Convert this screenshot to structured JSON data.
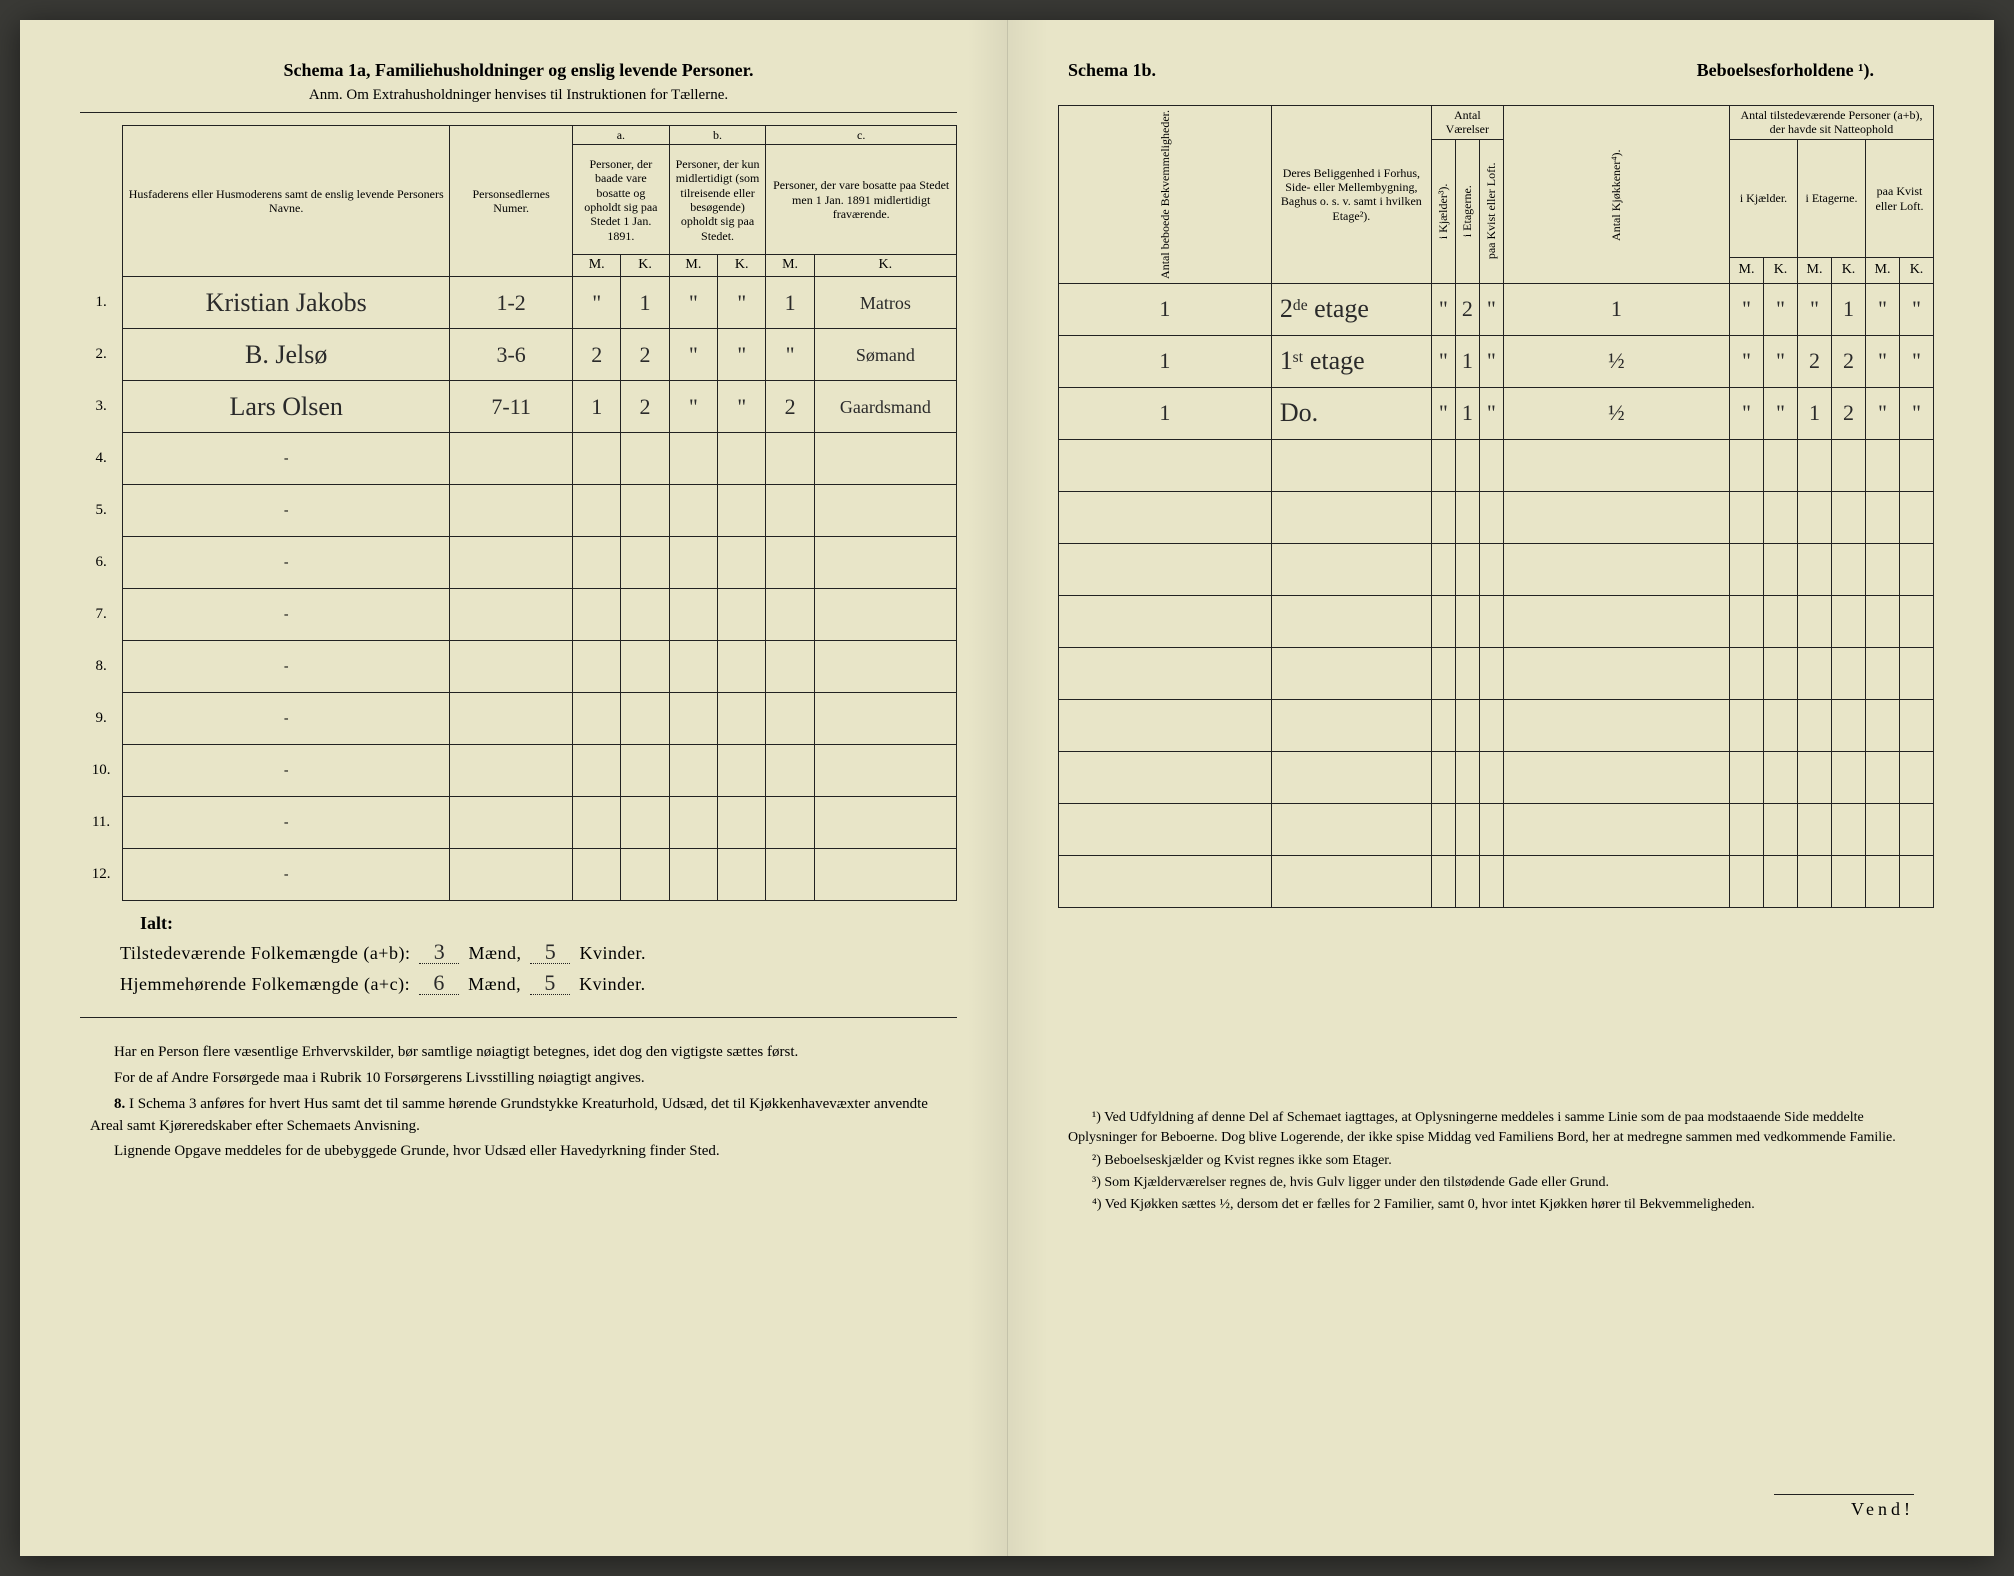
{
  "left": {
    "schema_title": "Schema 1a,",
    "schema_sub": "Familiehusholdninger og enslig levende Personer.",
    "anm": "Anm. Om Extrahusholdninger henvises til Instruktionen for Tællerne.",
    "headers": {
      "names": "Husfaderens eller Husmoderens samt de enslig levende Personers Navne.",
      "persnum": "Personsedlernes Numer.",
      "a_label": "a.",
      "a_desc": "Personer, der baade vare bosatte og opholdt sig paa Stedet 1 Jan. 1891.",
      "b_label": "b.",
      "b_desc": "Personer, der kun midlertidigt (som tilreisende eller besøgende) opholdt sig paa Stedet.",
      "c_label": "c.",
      "c_desc": "Personer, der vare bosatte paa Stedet men 1 Jan. 1891 midlertidigt fraværende.",
      "M": "M.",
      "K": "K."
    },
    "rows": [
      {
        "n": "1.",
        "name": "Kristian Jakobs",
        "num": "1-2",
        "aM": "\"",
        "aK": "1",
        "bM": "\"",
        "bK": "\"",
        "cM": "1",
        "cK": "Matros"
      },
      {
        "n": "2.",
        "name": "B. Jelsø",
        "num": "3-6",
        "aM": "2",
        "aK": "2",
        "bM": "\"",
        "bK": "\"",
        "cM": "\"",
        "cK": "Sømand"
      },
      {
        "n": "3.",
        "name": "Lars Olsen",
        "num": "7-11",
        "aM": "1",
        "aK": "2",
        "bM": "\"",
        "bK": "\"",
        "cM": "2",
        "cK": "Gaardsmand"
      }
    ],
    "empty_nums": [
      "4.",
      "5.",
      "6.",
      "7.",
      "8.",
      "9.",
      "10.",
      "11.",
      "12."
    ],
    "ialt": "Ialt:",
    "sum1_label": "Tilstedeværende Folkemængde (a+b):",
    "sum1_m": "3",
    "sum1_k": "5",
    "sum2_label": "Hjemmehørende Folkemængde (a+c):",
    "sum2_m": "6",
    "sum2_k": "5",
    "maend": "Mænd,",
    "kvinder": "Kvinder.",
    "foot": [
      "Har en Person flere væsentlige Erhvervskilder, bør samtlige nøiagtigt betegnes, idet dog den vigtigste sættes først.",
      "For de af Andre Forsørgede maa i Rubrik 10 Forsørgerens Livsstilling nøiagtigt angives.",
      "I Schema 3 anføres for hvert Hus samt det til samme hørende Grundstykke Kreaturhold, Udsæd, det til Kjøkkenhavevæxter anvendte Areal samt Kjøreredskaber efter Schemaets Anvisning.",
      "Lignende Opgave meddeles for de ubebyggede Grunde, hvor Udsæd eller Havedyrkning finder Sted."
    ],
    "foot_num": "8."
  },
  "right": {
    "schema_title": "Schema 1b.",
    "schema_sub": "Beboelsesforholdene ¹).",
    "headers": {
      "antal_beb": "Antal beboede Bekvemmeligheder.",
      "belig": "Deres Beliggenhed i Forhus, Side- eller Mellembygning, Baghus o. s. v. samt i hvilken Etage²).",
      "antal_vaer": "Antal Værelser",
      "kjælder": "i Kjælder³).",
      "etagerne": "i Etagerne.",
      "kvist": "paa Kvist eller Loft.",
      "kjokkener": "Antal Kjøkkener⁴).",
      "antal_til": "Antal tilstedeværende Personer (a+b), der havde sit Natteophold",
      "i_kjael": "i Kjælder.",
      "i_etag": "i Etagerne.",
      "paa_kvist": "paa Kvist eller Loft.",
      "M": "M.",
      "K": "K."
    },
    "rows": [
      {
        "ab": "1",
        "bel": "2ᵈᵉ etage",
        "kj": "\"",
        "et": "2",
        "kv": "\"",
        "kk": "1",
        "kjM": "\"",
        "kjK": "\"",
        "etM": "\"",
        "etK": "1",
        "kvM": "\"",
        "kvK": "\""
      },
      {
        "ab": "1",
        "bel": "1ˢᵗ etage",
        "kj": "\"",
        "et": "1",
        "kv": "\"",
        "kk": "½",
        "kjM": "\"",
        "kjK": "\"",
        "etM": "2",
        "etK": "2",
        "kvM": "\"",
        "kvK": "\""
      },
      {
        "ab": "1",
        "bel": "Do.",
        "kj": "\"",
        "et": "1",
        "kv": "\"",
        "kk": "½",
        "kjM": "\"",
        "kjK": "\"",
        "etM": "1",
        "etK": "2",
        "kvM": "\"",
        "kvK": "\""
      }
    ],
    "foot": [
      "¹) Ved Udfyldning af denne Del af Schemaet iagttages, at Oplysningerne meddeles i samme Linie som de paa modstaaende Side meddelte Oplysninger for Beboerne. Dog blive Logerende, der ikke spise Middag ved Familiens Bord, her at medregne sammen med vedkommende Familie.",
      "²) Beboelseskjælder og Kvist regnes ikke som Etager.",
      "³) Som Kjælderværelser regnes de, hvis Gulv ligger under den tilstødende Gade eller Grund.",
      "⁴) Ved Kjøkken sættes ½, dersom det er fælles for 2 Familier, samt 0, hvor intet Kjøkken hører til Bekvemmeligheden."
    ],
    "vend": "Vend!"
  }
}
